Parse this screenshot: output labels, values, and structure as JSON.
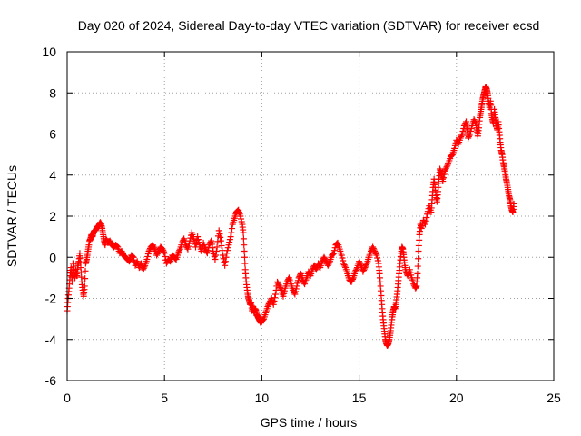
{
  "chart_data": {
    "type": "scatter",
    "title": "Day 020 of 2024, Sidereal Day-to-day VTEC variation (SDTVAR) for receiver ecsd",
    "xlabel": "GPS time / hours",
    "ylabel": "SDTVAR / TECUs",
    "xlim": [
      0,
      25
    ],
    "ylim": [
      -6,
      10
    ],
    "xticks": [
      0,
      5,
      10,
      15,
      20,
      25
    ],
    "yticks": [
      -6,
      -4,
      -2,
      0,
      2,
      4,
      6,
      8,
      10
    ],
    "grid": true,
    "marker": "+",
    "series": [
      {
        "name": "SDTVAR",
        "color": "#ff0000",
        "points": [
          [
            0.0,
            -2.6
          ],
          [
            0.05,
            -2.0
          ],
          [
            0.1,
            -1.5
          ],
          [
            0.15,
            -0.9
          ],
          [
            0.2,
            -0.5
          ],
          [
            0.25,
            -1.2
          ],
          [
            0.3,
            -0.3
          ],
          [
            0.35,
            -0.8
          ],
          [
            0.4,
            -1.0
          ],
          [
            0.45,
            -0.6
          ],
          [
            0.5,
            -0.9
          ],
          [
            0.55,
            -0.4
          ],
          [
            0.6,
            -0.2
          ],
          [
            0.65,
            0.2
          ],
          [
            0.7,
            -0.5
          ],
          [
            0.75,
            -1.2
          ],
          [
            0.8,
            -1.6
          ],
          [
            0.85,
            -1.9
          ],
          [
            0.9,
            -1.4
          ],
          [
            0.95,
            -0.3
          ],
          [
            1.0,
            -0.1
          ],
          [
            1.05,
            0.2
          ],
          [
            1.1,
            0.5
          ],
          [
            1.15,
            0.8
          ],
          [
            1.2,
            0.9
          ],
          [
            1.25,
            1.1
          ],
          [
            1.3,
            1.0
          ],
          [
            1.35,
            1.2
          ],
          [
            1.4,
            1.3
          ],
          [
            1.45,
            1.3
          ],
          [
            1.5,
            1.4
          ],
          [
            1.55,
            1.5
          ],
          [
            1.6,
            1.5
          ],
          [
            1.65,
            1.6
          ],
          [
            1.7,
            1.7
          ],
          [
            1.75,
            1.6
          ],
          [
            1.8,
            1.4
          ],
          [
            1.85,
            1.1
          ],
          [
            1.9,
            0.8
          ],
          [
            1.95,
            0.6
          ],
          [
            2.0,
            0.9
          ],
          [
            2.1,
            0.7
          ],
          [
            2.2,
            0.8
          ],
          [
            2.3,
            0.6
          ],
          [
            2.4,
            0.5
          ],
          [
            2.5,
            0.6
          ],
          [
            2.6,
            0.5
          ],
          [
            2.7,
            0.2
          ],
          [
            2.8,
            0.3
          ],
          [
            2.9,
            0.1
          ],
          [
            3.0,
            0.0
          ],
          [
            3.1,
            -0.1
          ],
          [
            3.2,
            -0.2
          ],
          [
            3.3,
            0.1
          ],
          [
            3.4,
            0.0
          ],
          [
            3.5,
            -0.4
          ],
          [
            3.6,
            -0.2
          ],
          [
            3.7,
            -0.5
          ],
          [
            3.8,
            -0.3
          ],
          [
            3.9,
            -0.6
          ],
          [
            4.0,
            -0.4
          ],
          [
            4.1,
            -0.1
          ],
          [
            4.2,
            0.3
          ],
          [
            4.3,
            0.5
          ],
          [
            4.4,
            0.6
          ],
          [
            4.5,
            0.4
          ],
          [
            4.6,
            0.1
          ],
          [
            4.7,
            0.3
          ],
          [
            4.8,
            0.5
          ],
          [
            4.9,
            0.4
          ],
          [
            5.0,
            0.2
          ],
          [
            5.1,
            -0.3
          ],
          [
            5.2,
            -0.1
          ],
          [
            5.3,
            -0.2
          ],
          [
            5.4,
            0.1
          ],
          [
            5.5,
            0.0
          ],
          [
            5.6,
            -0.1
          ],
          [
            5.7,
            0.2
          ],
          [
            5.8,
            0.4
          ],
          [
            5.9,
            0.7
          ],
          [
            6.0,
            0.9
          ],
          [
            6.1,
            0.6
          ],
          [
            6.2,
            0.4
          ],
          [
            6.3,
            0.8
          ],
          [
            6.4,
            1.2
          ],
          [
            6.5,
            0.9
          ],
          [
            6.6,
            0.5
          ],
          [
            6.7,
            1.0
          ],
          [
            6.8,
            0.6
          ],
          [
            6.9,
            0.3
          ],
          [
            7.0,
            0.7
          ],
          [
            7.1,
            0.4
          ],
          [
            7.2,
            0.2
          ],
          [
            7.3,
            0.6
          ],
          [
            7.4,
            0.8
          ],
          [
            7.5,
            0.3
          ],
          [
            7.6,
            -0.1
          ],
          [
            7.7,
            0.5
          ],
          [
            7.8,
            1.3
          ],
          [
            7.9,
            0.8
          ],
          [
            8.0,
            0.1
          ],
          [
            8.1,
            -0.4
          ],
          [
            8.2,
            0.2
          ],
          [
            8.3,
            0.6
          ],
          [
            8.4,
            1.0
          ],
          [
            8.5,
            1.6
          ],
          [
            8.6,
            1.9
          ],
          [
            8.7,
            2.2
          ],
          [
            8.8,
            2.3
          ],
          [
            8.9,
            2.0
          ],
          [
            9.0,
            1.6
          ],
          [
            9.05,
            1.2
          ],
          [
            9.1,
            0.3
          ],
          [
            9.15,
            -0.6
          ],
          [
            9.2,
            -1.2
          ],
          [
            9.25,
            -1.6
          ],
          [
            9.3,
            -1.9
          ],
          [
            9.35,
            -2.1
          ],
          [
            9.4,
            -2.3
          ],
          [
            9.45,
            -2.2
          ],
          [
            9.5,
            -2.6
          ],
          [
            9.55,
            -2.4
          ],
          [
            9.6,
            -2.7
          ],
          [
            9.65,
            -2.5
          ],
          [
            9.7,
            -2.6
          ],
          [
            9.75,
            -2.8
          ],
          [
            9.8,
            -2.9
          ],
          [
            9.85,
            -3.0
          ],
          [
            9.9,
            -3.1
          ],
          [
            9.95,
            -3.2
          ],
          [
            10.0,
            -3.1
          ],
          [
            10.1,
            -3.0
          ],
          [
            10.2,
            -2.7
          ],
          [
            10.3,
            -2.4
          ],
          [
            10.4,
            -2.2
          ],
          [
            10.5,
            -2.0
          ],
          [
            10.6,
            -2.3
          ],
          [
            10.7,
            -1.8
          ],
          [
            10.8,
            -1.2
          ],
          [
            10.9,
            -1.4
          ],
          [
            11.0,
            -1.6
          ],
          [
            11.1,
            -1.9
          ],
          [
            11.2,
            -1.5
          ],
          [
            11.3,
            -1.2
          ],
          [
            11.4,
            -1.0
          ],
          [
            11.5,
            -1.3
          ],
          [
            11.6,
            -1.6
          ],
          [
            11.7,
            -1.8
          ],
          [
            11.8,
            -1.4
          ],
          [
            11.9,
            -1.0
          ],
          [
            12.0,
            -0.8
          ],
          [
            12.1,
            -1.1
          ],
          [
            12.2,
            -1.3
          ],
          [
            12.3,
            -1.0
          ],
          [
            12.4,
            -0.7
          ],
          [
            12.5,
            -0.9
          ],
          [
            12.6,
            -0.6
          ],
          [
            12.7,
            -0.4
          ],
          [
            12.8,
            -0.6
          ],
          [
            12.9,
            -0.3
          ],
          [
            13.0,
            -0.5
          ],
          [
            13.1,
            -0.2
          ],
          [
            13.2,
            0.0
          ],
          [
            13.3,
            -0.2
          ],
          [
            13.4,
            -0.4
          ],
          [
            13.5,
            -0.2
          ],
          [
            13.6,
            0.1
          ],
          [
            13.7,
            0.2
          ],
          [
            13.8,
            0.6
          ],
          [
            13.9,
            0.7
          ],
          [
            14.0,
            0.4
          ],
          [
            14.1,
            0.1
          ],
          [
            14.2,
            -0.3
          ],
          [
            14.3,
            -0.5
          ],
          [
            14.4,
            -0.8
          ],
          [
            14.5,
            -1.1
          ],
          [
            14.6,
            -1.2
          ],
          [
            14.7,
            -1.0
          ],
          [
            14.8,
            -0.7
          ],
          [
            14.9,
            -0.5
          ],
          [
            15.0,
            -0.2
          ],
          [
            15.1,
            -0.4
          ],
          [
            15.2,
            -0.7
          ],
          [
            15.3,
            -0.5
          ],
          [
            15.4,
            -0.3
          ],
          [
            15.5,
            0.0
          ],
          [
            15.6,
            0.3
          ],
          [
            15.7,
            0.5
          ],
          [
            15.8,
            0.3
          ],
          [
            15.9,
            0.1
          ],
          [
            16.0,
            -0.3
          ],
          [
            16.05,
            -0.8
          ],
          [
            16.1,
            -1.4
          ],
          [
            16.15,
            -2.1
          ],
          [
            16.2,
            -2.7
          ],
          [
            16.25,
            -3.2
          ],
          [
            16.3,
            -3.6
          ],
          [
            16.35,
            -4.0
          ],
          [
            16.4,
            -4.2
          ],
          [
            16.45,
            -4.3
          ],
          [
            16.5,
            -4.2
          ],
          [
            16.55,
            -4.0
          ],
          [
            16.6,
            -3.7
          ],
          [
            16.65,
            -3.3
          ],
          [
            16.7,
            -2.9
          ],
          [
            16.75,
            -2.6
          ],
          [
            16.8,
            -2.4
          ],
          [
            16.85,
            -2.5
          ],
          [
            16.9,
            -2.2
          ],
          [
            16.95,
            -1.8
          ],
          [
            17.0,
            -1.3
          ],
          [
            17.05,
            -0.8
          ],
          [
            17.1,
            -0.3
          ],
          [
            17.15,
            0.2
          ],
          [
            17.2,
            0.5
          ],
          [
            17.25,
            0.4
          ],
          [
            17.3,
            0.0
          ],
          [
            17.35,
            -0.4
          ],
          [
            17.4,
            -0.7
          ],
          [
            17.5,
            -0.9
          ],
          [
            17.6,
            -0.6
          ],
          [
            17.7,
            -1.0
          ],
          [
            17.8,
            -1.3
          ],
          [
            17.9,
            -1.5
          ],
          [
            17.95,
            -1.4
          ],
          [
            18.0,
            -0.8
          ],
          [
            18.05,
            0.3
          ],
          [
            18.1,
            1.1
          ],
          [
            18.15,
            1.6
          ],
          [
            18.2,
            1.4
          ],
          [
            18.3,
            1.8
          ],
          [
            18.4,
            1.6
          ],
          [
            18.5,
            2.1
          ],
          [
            18.6,
            2.5
          ],
          [
            18.7,
            2.2
          ],
          [
            18.75,
            2.8
          ],
          [
            18.8,
            3.4
          ],
          [
            18.85,
            3.8
          ],
          [
            18.9,
            3.4
          ],
          [
            18.95,
            3.0
          ],
          [
            19.0,
            2.7
          ],
          [
            19.05,
            3.2
          ],
          [
            19.1,
            3.8
          ],
          [
            19.15,
            4.3
          ],
          [
            19.2,
            4.1
          ],
          [
            19.25,
            4.0
          ],
          [
            19.3,
            3.7
          ],
          [
            19.4,
            4.2
          ],
          [
            19.5,
            4.4
          ],
          [
            19.6,
            4.6
          ],
          [
            19.7,
            4.9
          ],
          [
            19.8,
            5.0
          ],
          [
            19.9,
            5.3
          ],
          [
            20.0,
            5.7
          ],
          [
            20.1,
            5.5
          ],
          [
            20.2,
            5.8
          ],
          [
            20.3,
            6.0
          ],
          [
            20.4,
            6.4
          ],
          [
            20.5,
            6.6
          ],
          [
            20.55,
            6.2
          ],
          [
            20.6,
            5.8
          ],
          [
            20.7,
            6.0
          ],
          [
            20.8,
            6.4
          ],
          [
            20.9,
            6.7
          ],
          [
            21.0,
            6.5
          ],
          [
            21.05,
            6.2
          ],
          [
            21.1,
            5.9
          ],
          [
            21.15,
            6.3
          ],
          [
            21.2,
            6.8
          ],
          [
            21.25,
            7.1
          ],
          [
            21.3,
            7.4
          ],
          [
            21.35,
            7.7
          ],
          [
            21.4,
            7.9
          ],
          [
            21.45,
            8.1
          ],
          [
            21.5,
            8.3
          ],
          [
            21.55,
            8.2
          ],
          [
            21.6,
            8.0
          ],
          [
            21.65,
            7.6
          ],
          [
            21.7,
            7.3
          ],
          [
            21.75,
            7.6
          ],
          [
            21.8,
            7.0
          ],
          [
            21.85,
            6.7
          ],
          [
            21.9,
            6.5
          ],
          [
            21.95,
            7.2
          ],
          [
            22.0,
            6.8
          ],
          [
            22.05,
            6.4
          ],
          [
            22.1,
            6.2
          ],
          [
            22.15,
            6.6
          ],
          [
            22.2,
            6.1
          ],
          [
            22.25,
            5.6
          ],
          [
            22.3,
            5.2
          ],
          [
            22.35,
            5.0
          ],
          [
            22.4,
            4.6
          ],
          [
            22.45,
            4.4
          ],
          [
            22.5,
            4.1
          ],
          [
            22.55,
            3.8
          ],
          [
            22.6,
            3.6
          ],
          [
            22.65,
            3.3
          ],
          [
            22.7,
            3.0
          ],
          [
            22.75,
            2.8
          ],
          [
            22.8,
            2.5
          ],
          [
            22.85,
            2.3
          ],
          [
            22.9,
            2.2
          ],
          [
            22.95,
            2.6
          ]
        ]
      }
    ]
  }
}
